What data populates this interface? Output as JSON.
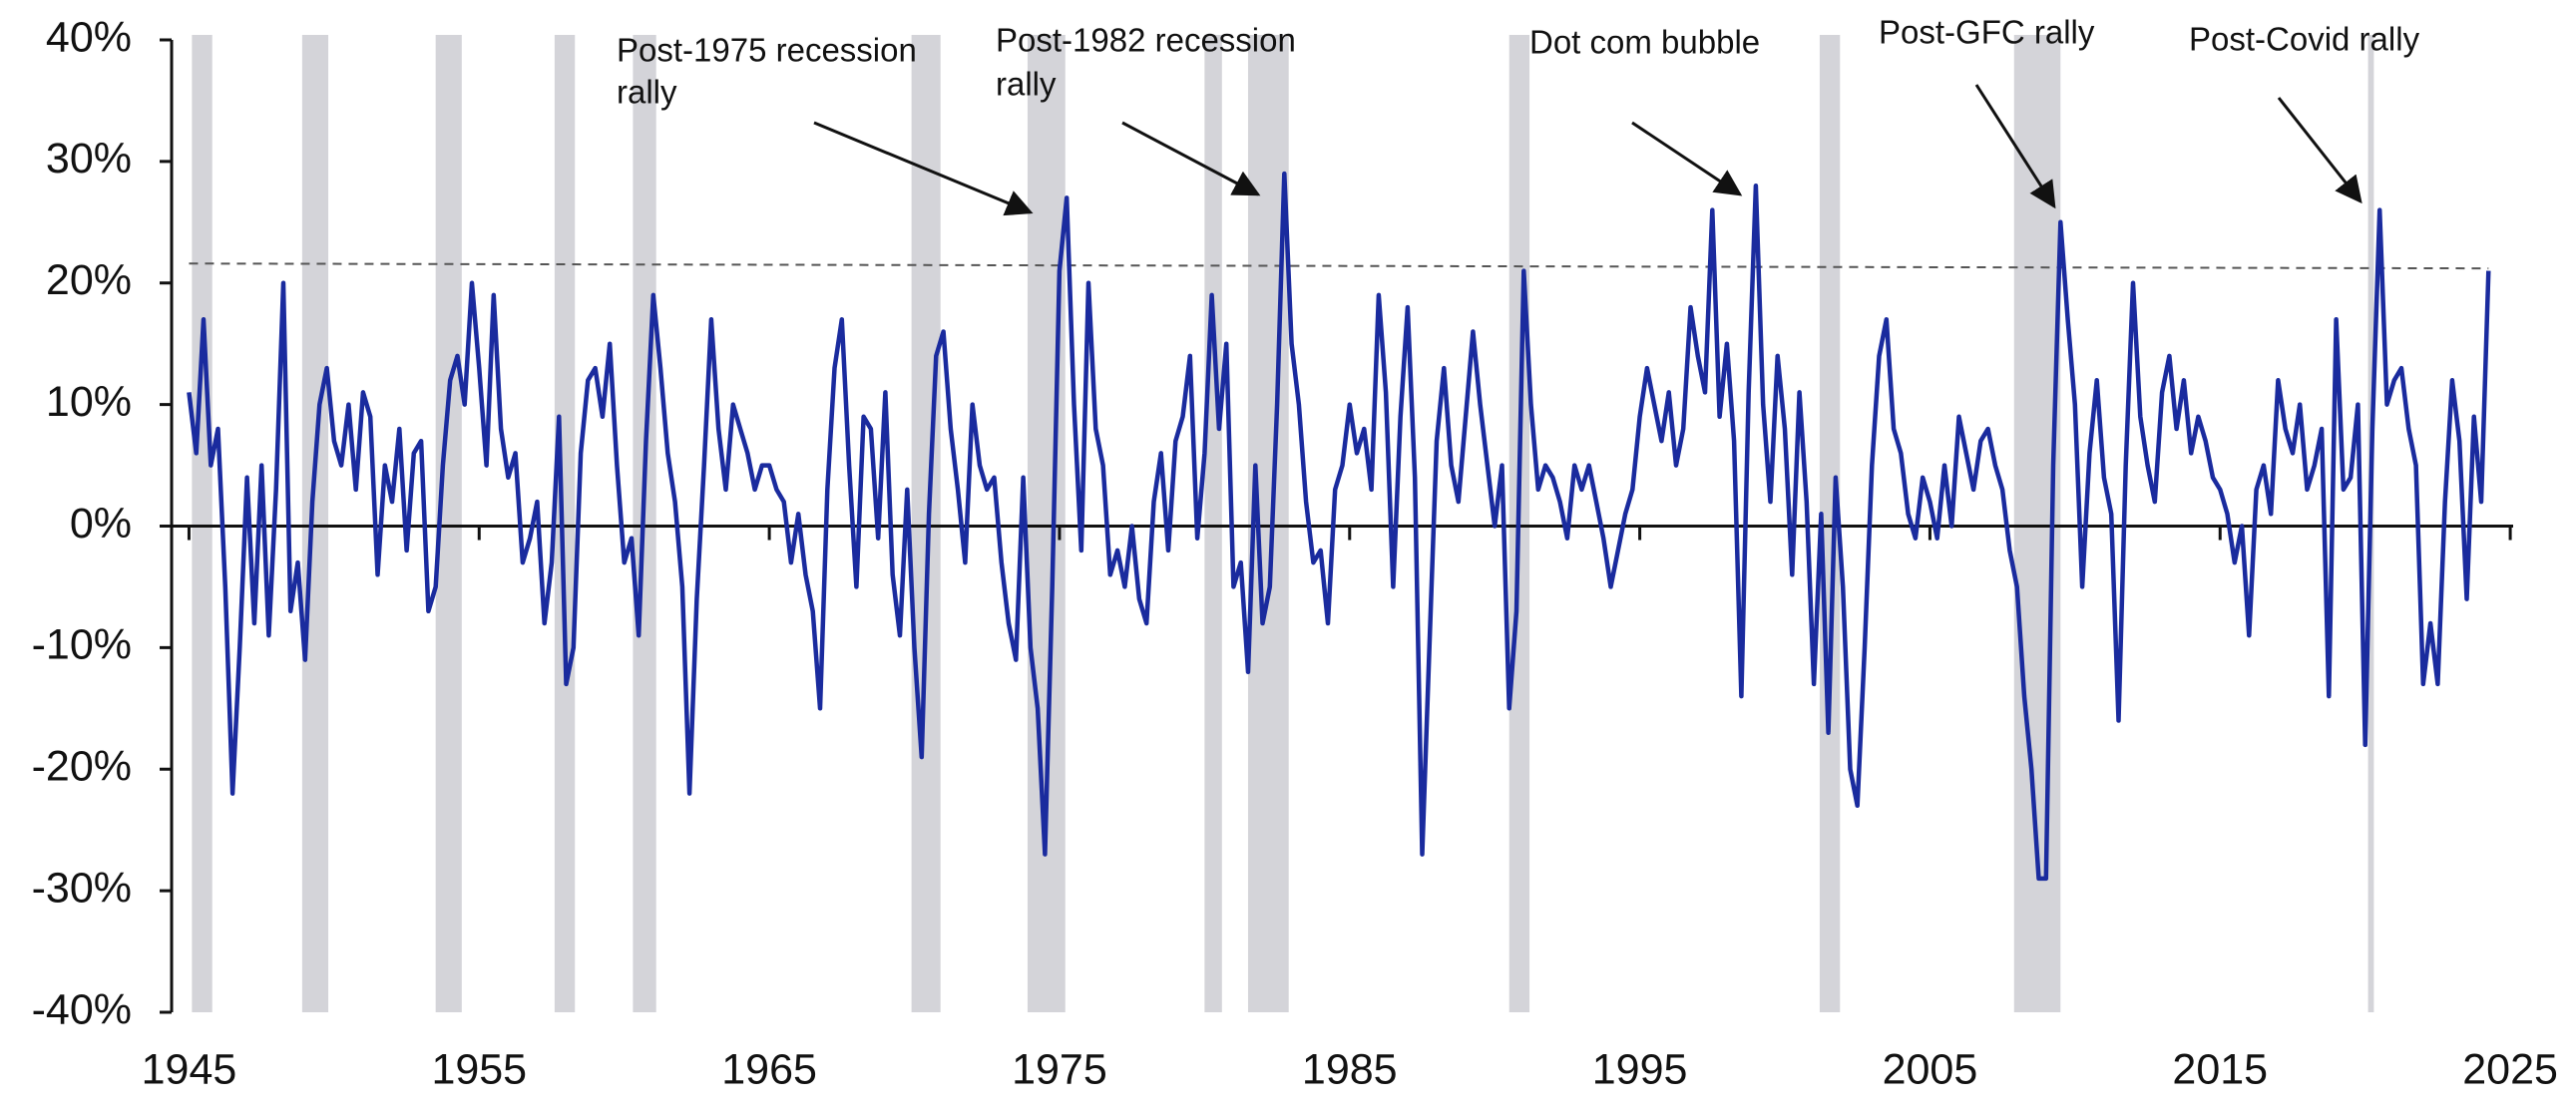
{
  "chart_data": {
    "type": "line",
    "xlim": [
      1944.4,
      2025.1
    ],
    "ylim": [
      -40,
      40
    ],
    "xticks": [
      1945,
      1955,
      1965,
      1975,
      1985,
      1995,
      2005,
      2015,
      2025
    ],
    "yticks": [
      {
        "value": -40,
        "label": "-40%"
      },
      {
        "value": -30,
        "label": "-30%"
      },
      {
        "value": -20,
        "label": "-20%"
      },
      {
        "value": -10,
        "label": "-10%"
      },
      {
        "value": 0,
        "label": "0%"
      },
      {
        "value": 10,
        "label": "10%"
      },
      {
        "value": 20,
        "label": "20%"
      },
      {
        "value": 30,
        "label": "30%"
      },
      {
        "value": 40,
        "label": "40%"
      }
    ],
    "recession_color": "#d4d4d9",
    "recessions": [
      [
        1945.1,
        1945.8
      ],
      [
        1948.9,
        1949.8
      ],
      [
        1953.5,
        1954.4
      ],
      [
        1957.6,
        1958.3
      ],
      [
        1960.3,
        1961.1
      ],
      [
        1969.9,
        1970.9
      ],
      [
        1973.9,
        1975.2
      ],
      [
        1980.0,
        1980.6
      ],
      [
        1981.5,
        1982.9
      ],
      [
        1990.5,
        1991.2
      ],
      [
        2001.2,
        2001.9
      ],
      [
        2007.9,
        2009.5
      ],
      [
        2020.1,
        2020.3
      ]
    ],
    "reference_line": {
      "x": [
        1945,
        2024.25
      ],
      "y": [
        21.6,
        21.2
      ],
      "color": "#555555"
    },
    "annotations": [
      {
        "text": [
          "Post-1975 recession",
          "rally"
        ]
      },
      {
        "text": [
          "Post-1982 recession",
          "rally"
        ]
      },
      {
        "text": [
          "Dot com bubble"
        ]
      },
      {
        "text": [
          "Post-GFC rally"
        ]
      },
      {
        "text": [
          "Post-Covid rally"
        ]
      }
    ],
    "series": [
      {
        "color": "#1a2b9e",
        "x": [
          1945,
          1945.25,
          1945.5,
          1945.75,
          1946,
          1946.25,
          1946.5,
          1946.75,
          1947,
          1947.25,
          1947.5,
          1947.75,
          1948,
          1948.25,
          1948.5,
          1948.75,
          1949,
          1949.25,
          1949.5,
          1949.75,
          1950,
          1950.25,
          1950.5,
          1950.75,
          1951,
          1951.25,
          1951.5,
          1951.75,
          1952,
          1952.25,
          1952.5,
          1952.75,
          1953,
          1953.25,
          1953.5,
          1953.75,
          1954,
          1954.25,
          1954.5,
          1954.75,
          1955,
          1955.25,
          1955.5,
          1955.75,
          1956,
          1956.25,
          1956.5,
          1956.75,
          1957,
          1957.25,
          1957.5,
          1957.75,
          1958,
          1958.25,
          1958.5,
          1958.75,
          1959,
          1959.25,
          1959.5,
          1959.75,
          1960,
          1960.25,
          1960.5,
          1960.75,
          1961,
          1961.25,
          1961.5,
          1961.75,
          1962,
          1962.25,
          1962.5,
          1962.75,
          1963,
          1963.25,
          1963.5,
          1963.75,
          1964,
          1964.25,
          1964.5,
          1964.75,
          1965,
          1965.25,
          1965.5,
          1965.75,
          1966,
          1966.25,
          1966.5,
          1966.75,
          1967,
          1967.25,
          1967.5,
          1967.75,
          1968,
          1968.25,
          1968.5,
          1968.75,
          1969,
          1969.25,
          1969.5,
          1969.75,
          1970,
          1970.25,
          1970.5,
          1970.75,
          1971,
          1971.25,
          1971.5,
          1971.75,
          1972,
          1972.25,
          1972.5,
          1972.75,
          1973,
          1973.25,
          1973.5,
          1973.75,
          1974,
          1974.25,
          1974.5,
          1974.75,
          1975,
          1975.25,
          1975.5,
          1975.75,
          1976,
          1976.25,
          1976.5,
          1976.75,
          1977,
          1977.25,
          1977.5,
          1977.75,
          1978,
          1978.25,
          1978.5,
          1978.75,
          1979,
          1979.25,
          1979.5,
          1979.75,
          1980,
          1980.25,
          1980.5,
          1980.75,
          1981,
          1981.25,
          1981.5,
          1981.75,
          1982,
          1982.25,
          1982.5,
          1982.75,
          1983,
          1983.25,
          1983.5,
          1983.75,
          1984,
          1984.25,
          1984.5,
          1984.75,
          1985,
          1985.25,
          1985.5,
          1985.75,
          1986,
          1986.25,
          1986.5,
          1986.75,
          1987,
          1987.25,
          1987.5,
          1987.75,
          1988,
          1988.25,
          1988.5,
          1988.75,
          1989,
          1989.25,
          1989.5,
          1989.75,
          1990,
          1990.25,
          1990.5,
          1990.75,
          1991,
          1991.25,
          1991.5,
          1991.75,
          1992,
          1992.25,
          1992.5,
          1992.75,
          1993,
          1993.25,
          1993.5,
          1993.75,
          1994,
          1994.25,
          1994.5,
          1994.75,
          1995,
          1995.25,
          1995.5,
          1995.75,
          1996,
          1996.25,
          1996.5,
          1996.75,
          1997,
          1997.25,
          1997.5,
          1997.75,
          1998,
          1998.25,
          1998.5,
          1998.75,
          1999,
          1999.25,
          1999.5,
          1999.75,
          2000,
          2000.25,
          2000.5,
          2000.75,
          2001,
          2001.25,
          2001.5,
          2001.75,
          2002,
          2002.25,
          2002.5,
          2002.75,
          2003,
          2003.25,
          2003.5,
          2003.75,
          2004,
          2004.25,
          2004.5,
          2004.75,
          2005,
          2005.25,
          2005.5,
          2005.75,
          2006,
          2006.25,
          2006.5,
          2006.75,
          2007,
          2007.25,
          2007.5,
          2007.75,
          2008,
          2008.25,
          2008.5,
          2008.75,
          2009,
          2009.25,
          2009.5,
          2009.75,
          2010,
          2010.25,
          2010.5,
          2010.75,
          2011,
          2011.25,
          2011.5,
          2011.75,
          2012,
          2012.25,
          2012.5,
          2012.75,
          2013,
          2013.25,
          2013.5,
          2013.75,
          2014,
          2014.25,
          2014.5,
          2014.75,
          2015,
          2015.25,
          2015.5,
          2015.75,
          2016,
          2016.25,
          2016.5,
          2016.75,
          2017,
          2017.25,
          2017.5,
          2017.75,
          2018,
          2018.25,
          2018.5,
          2018.75,
          2019,
          2019.25,
          2019.5,
          2019.75,
          2020,
          2020.25,
          2020.5,
          2020.75,
          2021,
          2021.25,
          2021.5,
          2021.75,
          2022,
          2022.25,
          2022.5,
          2022.75,
          2023,
          2023.25,
          2023.5,
          2023.75,
          2024,
          2024.25
        ],
        "values": [
          11,
          6,
          17,
          5,
          8,
          -5,
          -22,
          -10,
          4,
          -8,
          5,
          -9,
          3,
          20,
          -7,
          -3,
          -11,
          2,
          10,
          13,
          7,
          5,
          10,
          3,
          11,
          9,
          -4,
          5,
          2,
          8,
          -2,
          6,
          7,
          -7,
          -5,
          5,
          12,
          14,
          10,
          20,
          13,
          5,
          19,
          8,
          4,
          6,
          -3,
          -1,
          2,
          -8,
          -3,
          9,
          -13,
          -10,
          6,
          12,
          13,
          9,
          15,
          5,
          -3,
          -1,
          -9,
          7,
          19,
          13,
          6,
          2,
          -5,
          -22,
          -6,
          5,
          17,
          8,
          3,
          10,
          8,
          6,
          3,
          5,
          5,
          3,
          2,
          -3,
          1,
          -4,
          -7,
          -15,
          3,
          13,
          17,
          5,
          -5,
          9,
          8,
          -1,
          11,
          -4,
          -9,
          3,
          -10,
          -19,
          1,
          14,
          16,
          8,
          3,
          -3,
          10,
          5,
          3,
          4,
          -3,
          -8,
          -11,
          4,
          -10,
          -15,
          -27,
          -5,
          21,
          27,
          10,
          -2,
          20,
          8,
          5,
          -4,
          -2,
          -5,
          0,
          -6,
          -8,
          2,
          6,
          -2,
          7,
          9,
          14,
          -1,
          6,
          19,
          8,
          15,
          -5,
          -3,
          -12,
          5,
          -8,
          -5,
          10,
          29,
          15,
          10,
          2,
          -3,
          -2,
          -8,
          3,
          5,
          10,
          6,
          8,
          3,
          19,
          11,
          -5,
          9,
          18,
          4,
          -27,
          -10,
          7,
          13,
          5,
          2,
          9,
          16,
          10,
          5,
          0,
          5,
          -15,
          -7,
          21,
          10,
          3,
          5,
          4,
          2,
          -1,
          5,
          3,
          5,
          2,
          -1,
          -5,
          -2,
          1,
          3,
          9,
          13,
          10,
          7,
          11,
          5,
          8,
          18,
          14,
          11,
          26,
          9,
          15,
          7,
          -14,
          11,
          28,
          10,
          2,
          14,
          8,
          -4,
          11,
          2,
          -13,
          1,
          -17,
          4,
          -5,
          -20,
          -23,
          -10,
          5,
          14,
          17,
          8,
          6,
          1,
          -1,
          4,
          2,
          -1,
          5,
          0,
          9,
          6,
          3,
          7,
          8,
          5,
          3,
          -2,
          -5,
          -14,
          -20,
          -29,
          -29,
          5,
          25,
          17,
          10,
          -5,
          6,
          12,
          4,
          1,
          -16,
          5,
          20,
          9,
          5,
          2,
          11,
          14,
          8,
          12,
          6,
          9,
          7,
          4,
          3,
          1,
          -3,
          0,
          -9,
          3,
          5,
          1,
          12,
          8,
          6,
          10,
          3,
          5,
          8,
          -14,
          17,
          3,
          4,
          10,
          -18,
          8,
          26,
          10,
          12,
          13,
          8,
          5,
          -13,
          -8,
          -13,
          2,
          12,
          7,
          -6,
          9,
          2,
          21
        ]
      }
    ]
  }
}
